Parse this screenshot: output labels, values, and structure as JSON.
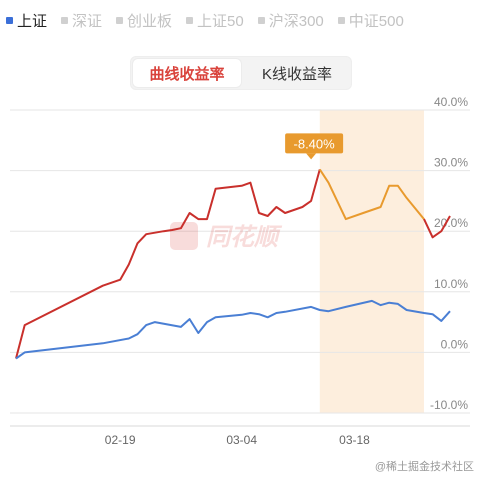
{
  "legend": [
    {
      "label": "上证",
      "color": "#3b6fd8",
      "active": true
    },
    {
      "label": "深证",
      "color": "#d0d0d0",
      "active": false
    },
    {
      "label": "创业板",
      "color": "#d0d0d0",
      "active": false
    },
    {
      "label": "上证50",
      "color": "#d0d0d0",
      "active": false
    },
    {
      "label": "沪深300",
      "color": "#d0d0d0",
      "active": false
    },
    {
      "label": "中证500",
      "color": "#d0d0d0",
      "active": false
    }
  ],
  "toggle": {
    "curve_label": "曲线收益率",
    "kline_label": "K线收益率"
  },
  "watermark": {
    "logo_text": "同花顺",
    "credit": "@稀土掘金技术社区"
  },
  "colors": {
    "red": "#c9302c",
    "blue": "#4a7fd4",
    "orange": "#e89a2e",
    "highlight": "#fdeedd",
    "grid": "#e6e6e6"
  },
  "chart_data": {
    "type": "line",
    "yaxis": {
      "min": -10,
      "max": 40,
      "step": 10,
      "tick_labels": [
        "40.0%",
        "30.0%",
        "20.0%",
        "10.0%",
        "0.0%",
        "-10.0%"
      ]
    },
    "xaxis": {
      "min": 0,
      "max": 50,
      "ticks": [
        {
          "x": 12,
          "label": "02-19"
        },
        {
          "x": 26,
          "label": "03-04"
        },
        {
          "x": 39,
          "label": "03-18"
        }
      ]
    },
    "highlight_range": [
      35,
      47
    ],
    "callout": {
      "x": 34,
      "y": 30.2,
      "text": "-8.40%"
    },
    "series": [
      {
        "key": "red",
        "points": [
          [
            0,
            -1
          ],
          [
            1,
            4.5
          ],
          [
            10,
            11
          ],
          [
            12,
            12
          ],
          [
            13,
            14.5
          ],
          [
            14,
            18
          ],
          [
            15,
            19.5
          ],
          [
            17,
            20
          ],
          [
            18,
            20.2
          ],
          [
            19,
            20.5
          ],
          [
            20,
            23
          ],
          [
            21,
            22
          ],
          [
            22,
            22
          ],
          [
            23,
            27
          ],
          [
            26,
            27.5
          ],
          [
            27,
            28
          ],
          [
            28,
            23
          ],
          [
            29,
            22.5
          ],
          [
            30,
            24
          ],
          [
            31,
            23
          ],
          [
            33,
            24
          ],
          [
            34,
            25
          ],
          [
            35,
            30.2
          ],
          [
            36,
            28
          ],
          [
            38,
            22
          ],
          [
            40,
            23
          ],
          [
            41,
            23.5
          ],
          [
            42,
            24
          ],
          [
            43,
            27.5
          ],
          [
            44,
            27.5
          ],
          [
            45,
            25.5
          ],
          [
            47,
            22
          ],
          [
            48,
            19
          ],
          [
            49,
            20
          ],
          [
            50,
            22.5
          ]
        ]
      },
      {
        "key": "blue",
        "points": [
          [
            0,
            -1
          ],
          [
            1,
            0
          ],
          [
            10,
            1.5
          ],
          [
            13,
            2.3
          ],
          [
            14,
            3
          ],
          [
            15,
            4.5
          ],
          [
            16,
            5
          ],
          [
            19,
            4.2
          ],
          [
            20,
            5.5
          ],
          [
            21,
            3.2
          ],
          [
            22,
            5
          ],
          [
            23,
            5.8
          ],
          [
            26,
            6.2
          ],
          [
            27,
            6.5
          ],
          [
            28,
            6.3
          ],
          [
            29,
            5.8
          ],
          [
            30,
            6.5
          ],
          [
            31,
            6.7
          ],
          [
            34,
            7.5
          ],
          [
            35,
            7
          ],
          [
            36,
            6.8
          ],
          [
            38,
            7.5
          ],
          [
            41,
            8.5
          ],
          [
            42,
            7.8
          ],
          [
            43,
            8.2
          ],
          [
            44,
            8
          ],
          [
            45,
            7
          ],
          [
            47,
            6.5
          ],
          [
            48,
            6.3
          ],
          [
            49,
            5.2
          ],
          [
            50,
            6.8
          ]
        ]
      }
    ]
  }
}
